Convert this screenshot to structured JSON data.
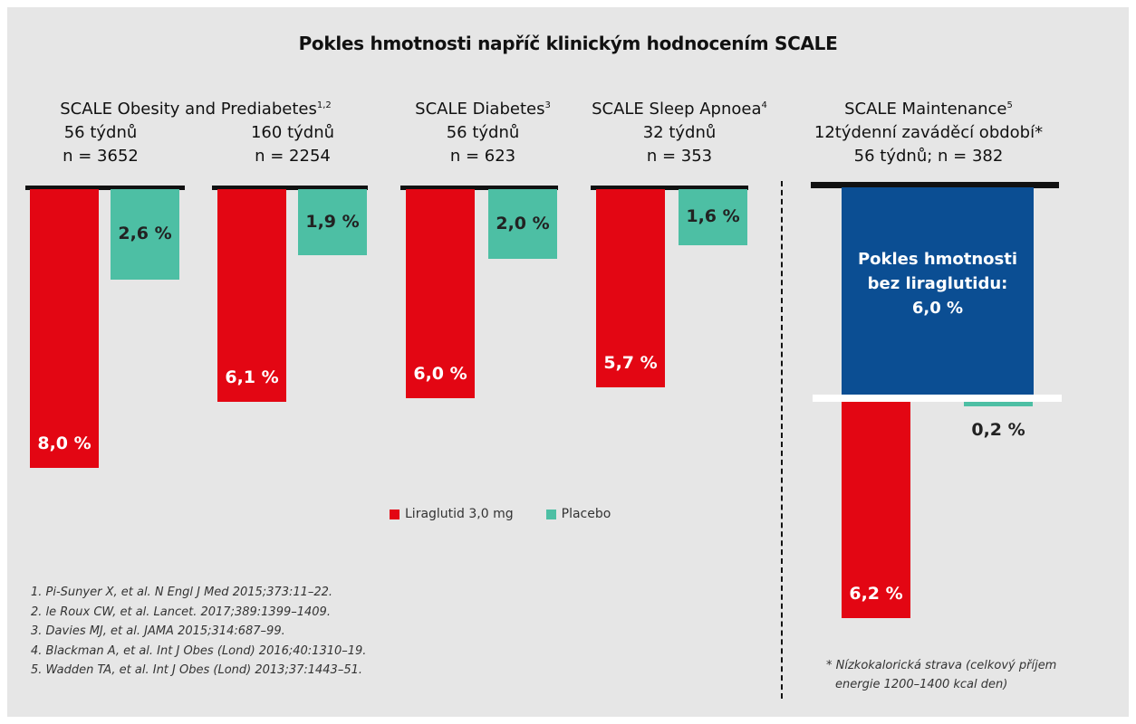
{
  "title": "Pokles hmotnosti napříč klinickým hodnocením SCALE",
  "colors": {
    "liraglutide": "#e30613",
    "placebo": "#4dbfa4",
    "maintenance_box": "#0b4e93",
    "background": "#e6e6e6"
  },
  "headers": {
    "obesity": {
      "name": "SCALE Obesity and Prediabetes",
      "sup": "1,2"
    },
    "obesity_56": {
      "weeks": "56 týdnů",
      "n": "n = 3652"
    },
    "obesity_160": {
      "weeks": "160 týdnů",
      "n": "n = 2254"
    },
    "diabetes": {
      "name": "SCALE Diabetes",
      "sup": "3",
      "weeks": "56 týdnů",
      "n": "n = 623"
    },
    "apnoea": {
      "name": "SCALE Sleep Apnoea",
      "sup": "4",
      "weeks": "32 týdnů",
      "n": "n = 353"
    },
    "maintenance": {
      "name": "SCALE Maintenance",
      "sup": "5",
      "runin": "12týdenní zaváděcí období*",
      "weeks_n": "56 týdnů; n = 382"
    }
  },
  "chart_data": {
    "type": "bar",
    "unit": "%",
    "categories": [
      "56 týdnů",
      "160 týdnů",
      "SCALE Diabetes",
      "SCALE Sleep Apnoea",
      "SCALE Maintenance"
    ],
    "series": [
      {
        "name": "Liraglutid 3,0 mg",
        "values": [
          8.0,
          6.1,
          6.0,
          5.7,
          6.2
        ],
        "labels": [
          "8,0 %",
          "6,1 %",
          "6,0 %",
          "5,7 %",
          "6,2 %"
        ]
      },
      {
        "name": "Placebo",
        "values": [
          2.6,
          1.9,
          2.0,
          1.6,
          0.2
        ],
        "labels": [
          "2,6 %",
          "1,9 %",
          "2,0 %",
          "1,6 %",
          "0,2 %"
        ]
      }
    ],
    "maintenance_runin": {
      "value": 6.0,
      "lines": [
        "Pokles hmotnosti",
        "bez liraglutidu:",
        "6,0 %"
      ]
    }
  },
  "legend": {
    "liraglutide": "Liraglutid 3,0 mg",
    "placebo": "Placebo"
  },
  "references": [
    "1. Pi-Sunyer X, et al. N Engl J Med 2015;373:11–22.",
    "2. le Roux CW, et al. Lancet. 2017;389:1399–1409.",
    "3. Davies MJ, et al. JAMA 2015;314:687–99.",
    "4. Blackman A, et al. Int J Obes (Lond) 2016;40:1310–19.",
    "5. Wadden TA, et al. Int J Obes (Lond) 2013;37:1443–51."
  ],
  "footnote": [
    "* Nízkokalorická strava (celkový příjem",
    "energie 1200–1400 kcal den)"
  ]
}
